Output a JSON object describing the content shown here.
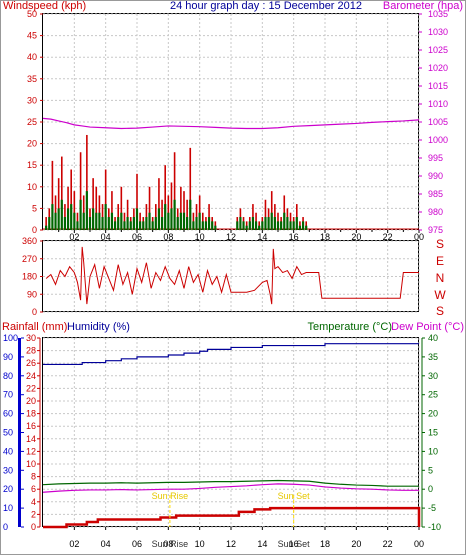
{
  "colors": {
    "red": "#cc0000",
    "magenta": "#cc00cc",
    "navy": "#000099",
    "green": "#006600",
    "blue": "#0000cc",
    "yellow": "#ffdd00",
    "grid": "#c8c8c8"
  },
  "header": {
    "windspeed_label": "Windspeed (kph)",
    "title": "24 hour graph day : 15 December 2012",
    "barometer_label": "Barometer (hpa)"
  },
  "direction_letters": [
    "S",
    "E",
    "N",
    "W",
    "S"
  ],
  "lower_header": {
    "rainfall_label": "Rainfall (mm)",
    "humidity_label": "Humidity (%)",
    "temperature_label": "Temperature (°C)",
    "dewpoint_label": "Dew Point (°C)"
  },
  "annotations": {
    "sunrise": "Sun Rise",
    "sunset": "Sun Set"
  },
  "chart_data": [
    {
      "type": "line",
      "title": "24 hour graph day : 15 December 2012",
      "x_ticks": [
        "02",
        "04",
        "06",
        "08",
        "10",
        "12",
        "14",
        "16",
        "18",
        "20",
        "22",
        "00"
      ],
      "y_ticks_left": [
        "0",
        "5",
        "10",
        "15",
        "20",
        "25",
        "30",
        "35",
        "40",
        "45",
        "50"
      ],
      "y_ticks_right": [
        "975",
        "980",
        "985",
        "990",
        "995",
        "1000",
        "1005",
        "1010",
        "1015",
        "1020",
        "1025",
        "1030",
        "1035"
      ],
      "ylim_left": [
        0,
        50
      ],
      "ylim_right": [
        975,
        1035
      ],
      "xlim": [
        0,
        24
      ],
      "grid": true,
      "series": [
        {
          "name": "Barometer (hpa)",
          "axis": "right",
          "color": "#cc00cc",
          "x": [
            0,
            0.5,
            1,
            1.5,
            2,
            2.5,
            3,
            4,
            5,
            6,
            7,
            8,
            9,
            10,
            11,
            12,
            13,
            14,
            15,
            16,
            17,
            18,
            19,
            20,
            21,
            22,
            23,
            24
          ],
          "y": [
            1006,
            1005.8,
            1005.3,
            1004.8,
            1004.2,
            1003.9,
            1003.6,
            1003.4,
            1003.2,
            1003.3,
            1003.6,
            1003.9,
            1003.8,
            1003.7,
            1003.5,
            1003.3,
            1003.2,
            1003.2,
            1003.4,
            1003.8,
            1004.0,
            1004.2,
            1004.4,
            1004.6,
            1004.9,
            1005.1,
            1005.3,
            1005.6
          ]
        },
        {
          "name": "Windspeed gust (kph)",
          "axis": "left",
          "color": "#cc0000",
          "x": [
            0.2,
            0.4,
            0.6,
            0.8,
            1.0,
            1.2,
            1.4,
            1.6,
            1.8,
            2.0,
            2.2,
            2.4,
            2.6,
            2.8,
            3.0,
            3.2,
            3.4,
            3.6,
            3.8,
            4.0,
            4.2,
            4.4,
            4.6,
            4.8,
            5.0,
            5.2,
            5.4,
            5.6,
            5.8,
            6.0,
            6.2,
            6.4,
            6.6,
            6.8,
            7.0,
            7.2,
            7.4,
            7.6,
            7.8,
            8.0,
            8.2,
            8.4,
            8.6,
            8.8,
            9.0,
            9.2,
            9.4,
            9.6,
            9.8,
            10.0,
            10.2,
            10.4,
            10.6,
            10.8,
            11.0,
            12.4,
            12.6,
            12.8,
            13.0,
            13.2,
            13.4,
            13.6,
            13.8,
            14.0,
            14.2,
            14.4,
            14.6,
            14.8,
            15.0,
            15.2,
            15.4,
            15.6,
            15.8,
            16.0,
            16.2,
            16.4,
            16.6,
            16.8
          ],
          "y": [
            3,
            5,
            16,
            8,
            12,
            17,
            6,
            10,
            14,
            9,
            4,
            18,
            8,
            22,
            5,
            12,
            10,
            8,
            6,
            14,
            5,
            9,
            3,
            6,
            10,
            4,
            7,
            3,
            5,
            13,
            4,
            3,
            6,
            10,
            3,
            6,
            12,
            7,
            15,
            8,
            11,
            18,
            5,
            10,
            9,
            7,
            19,
            4,
            6,
            8,
            4,
            3,
            6,
            3,
            2,
            3,
            5,
            3,
            2,
            3,
            6,
            4,
            2,
            3,
            7,
            5,
            9,
            6,
            4,
            3,
            8,
            5,
            4,
            3,
            6,
            2,
            3,
            2
          ]
        },
        {
          "name": "Windspeed average (kph)",
          "axis": "left",
          "color": "#006600",
          "x": [
            0.2,
            0.4,
            0.6,
            0.8,
            1.0,
            1.2,
            1.4,
            1.6,
            1.8,
            2.0,
            2.2,
            2.4,
            2.6,
            2.8,
            3.0,
            3.2,
            3.4,
            3.6,
            3.8,
            4.0,
            4.2,
            4.4,
            4.6,
            4.8,
            5.0,
            5.2,
            5.4,
            5.6,
            5.8,
            6.0,
            6.2,
            6.4,
            6.6,
            6.8,
            7.0,
            7.2,
            7.4,
            7.6,
            7.8,
            8.0,
            8.2,
            8.4,
            8.6,
            8.8,
            9.0,
            9.2,
            9.4,
            9.6,
            9.8,
            10.0,
            10.2,
            10.4,
            10.6,
            10.8,
            11.0,
            12.4,
            12.6,
            12.8,
            13.0,
            13.2,
            13.4,
            13.6,
            13.8,
            14.0,
            14.2,
            14.4,
            14.6,
            14.8,
            15.0,
            15.2,
            15.4,
            15.6,
            15.8,
            16.0,
            16.2,
            16.4,
            16.6,
            16.8
          ],
          "y": [
            1,
            3,
            6,
            4,
            5,
            7,
            3,
            5,
            6,
            4,
            2,
            7,
            4,
            9,
            3,
            5,
            4,
            4,
            3,
            6,
            3,
            4,
            2,
            3,
            4,
            2,
            3,
            2,
            3,
            5,
            2,
            2,
            3,
            4,
            2,
            3,
            5,
            3,
            6,
            4,
            5,
            7,
            3,
            4,
            4,
            3,
            7,
            2,
            3,
            4,
            2,
            2,
            3,
            2,
            1,
            2,
            3,
            2,
            1,
            2,
            3,
            2,
            1,
            2,
            3,
            3,
            4,
            3,
            2,
            2,
            4,
            3,
            2,
            2,
            3,
            1,
            2,
            1
          ]
        }
      ]
    },
    {
      "type": "line",
      "series_name": "Wind direction",
      "y_ticks": [
        "360",
        "270",
        "180",
        "90",
        "0"
      ],
      "ylim": [
        0,
        360
      ],
      "xlim": [
        0,
        24
      ],
      "grid": true,
      "series": [
        {
          "name": "Wind direction",
          "color": "#cc0000",
          "x": [
            0.2,
            0.5,
            0.8,
            1.1,
            1.4,
            1.7,
            2.0,
            2.2,
            2.4,
            2.5,
            2.6,
            2.8,
            3.0,
            3.3,
            3.6,
            3.9,
            4.2,
            4.5,
            4.8,
            5.1,
            5.4,
            5.7,
            6.0,
            6.3,
            6.6,
            6.9,
            7.2,
            7.5,
            7.8,
            8.1,
            8.4,
            8.7,
            9.0,
            9.3,
            9.6,
            9.9,
            10.2,
            10.5,
            10.8,
            11.1,
            11.4,
            11.7,
            12.0,
            12.5,
            13.0,
            13.5,
            14.0,
            14.3,
            14.5,
            14.6,
            14.7,
            14.8,
            15.0,
            15.3,
            15.6,
            15.9,
            16.2,
            16.5,
            16.8,
            17.0,
            17.2,
            17.4,
            17.6,
            17.8,
            18.0,
            20.0,
            22.0,
            22.8,
            23.0,
            23.2,
            23.6,
            24.0
          ],
          "y": [
            170,
            190,
            140,
            210,
            180,
            230,
            200,
            150,
            60,
            330,
            250,
            40,
            180,
            240,
            120,
            230,
            170,
            110,
            240,
            140,
            200,
            90,
            220,
            150,
            250,
            120,
            200,
            160,
            230,
            170,
            140,
            210,
            120,
            230,
            150,
            190,
            100,
            210,
            140,
            180,
            100,
            190,
            100,
            100,
            100,
            110,
            150,
            160,
            90,
            40,
            320,
            220,
            230,
            200,
            210,
            170,
            230,
            190,
            200,
            200,
            200,
            200,
            200,
            70,
            70,
            70,
            70,
            70,
            200,
            200,
            200,
            200
          ]
        }
      ]
    },
    {
      "type": "line",
      "x_ticks": [
        "02",
        "04",
        "06",
        "08",
        "10",
        "12",
        "14",
        "16",
        "18",
        "20",
        "22",
        "00"
      ],
      "y_ticks_rain": [
        "0",
        "2",
        "4",
        "6",
        "8",
        "10",
        "12",
        "14",
        "16",
        "18",
        "20",
        "22",
        "24",
        "26",
        "28",
        "30"
      ],
      "y_ticks_humidity": [
        "0",
        "10",
        "20",
        "30",
        "40",
        "50",
        "60",
        "70",
        "80",
        "90",
        "100"
      ],
      "y_ticks_temperature": [
        "-10",
        "-5",
        "0",
        "5",
        "10",
        "15",
        "20",
        "25",
        "30",
        "35",
        "40"
      ],
      "ylim_rain": [
        0,
        30
      ],
      "ylim_humidity": [
        0,
        100
      ],
      "ylim_temperature": [
        -10,
        40
      ],
      "xlim": [
        0,
        24
      ],
      "grid": true,
      "series": [
        {
          "name": "Humidity (%)",
          "axis": "humidity",
          "color": "#000099",
          "x": [
            0,
            1.5,
            2.5,
            4,
            5,
            6,
            7,
            8,
            9,
            10,
            10.5,
            11,
            12,
            13,
            14,
            15,
            16,
            17,
            18,
            19,
            20,
            21,
            22,
            23,
            24
          ],
          "y": [
            86,
            86,
            87,
            88,
            89,
            90,
            90,
            91,
            92,
            93,
            94,
            94,
            95,
            95,
            96,
            96,
            96,
            96,
            97,
            97,
            97,
            97,
            97,
            97,
            97
          ]
        },
        {
          "name": "Temperature (°C)",
          "axis": "temperature",
          "color": "#006600",
          "x": [
            0,
            1,
            2,
            3,
            4,
            5,
            6,
            7,
            8,
            9,
            10,
            11,
            12,
            13,
            14,
            15,
            16,
            17,
            18,
            19,
            20,
            21,
            22,
            23,
            24
          ],
          "y": [
            1.2,
            1.4,
            1.5,
            1.6,
            1.6,
            1.7,
            1.6,
            1.7,
            1.8,
            1.8,
            1.9,
            2.0,
            2.0,
            2.1,
            2.2,
            2.3,
            2.2,
            2.1,
            1.6,
            1.3,
            1.1,
            1.0,
            0.8,
            0.8,
            0.8
          ]
        },
        {
          "name": "Dew Point (°C)",
          "axis": "temperature",
          "color": "#cc00cc",
          "x": [
            0,
            1,
            2,
            3,
            4,
            5,
            6,
            7,
            8,
            9,
            10,
            11,
            12,
            13,
            14,
            15,
            16,
            17,
            18,
            19,
            20,
            21,
            22,
            23,
            24
          ],
          "y": [
            -0.8,
            -0.5,
            -0.3,
            -0.2,
            -0.2,
            -0.1,
            -0.2,
            -0.1,
            0.0,
            0.0,
            0.2,
            0.5,
            0.7,
            0.9,
            1.2,
            1.4,
            1.3,
            1.1,
            0.6,
            0.3,
            0.1,
            0.0,
            -0.2,
            -0.3,
            -0.3
          ]
        },
        {
          "name": "Rainfall (mm)",
          "axis": "rain",
          "color": "#cc0000",
          "x": [
            0,
            1.5,
            2.8,
            3.5,
            7.5,
            8.5,
            11,
            12.5,
            13.5,
            14.5,
            16,
            18,
            20,
            22,
            24
          ],
          "y": [
            0,
            0.4,
            0.8,
            1.2,
            1.5,
            1.8,
            1.8,
            2.4,
            2.8,
            3.0,
            3.0,
            3.0,
            3.0,
            3.0,
            0
          ]
        }
      ],
      "sunrise_hour": 8.1,
      "sunset_hour": 16.0
    }
  ]
}
